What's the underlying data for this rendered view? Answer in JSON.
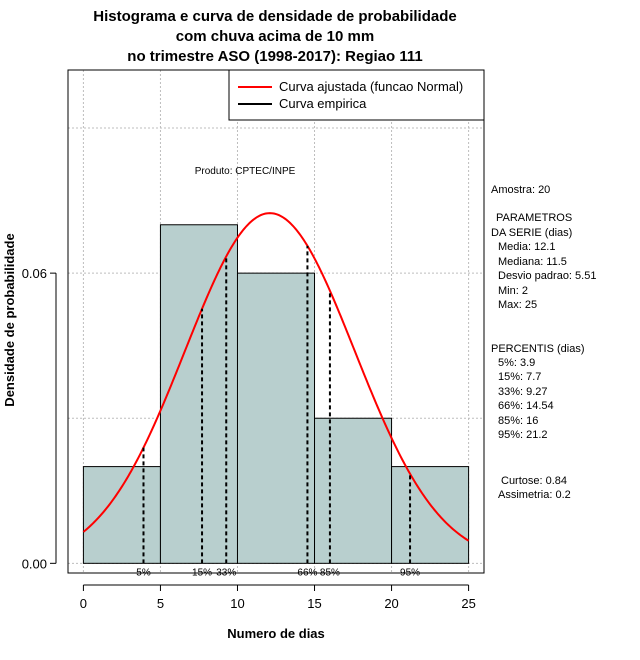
{
  "chart_data": {
    "type": "bar",
    "title": [
      "Histograma e curva de densidade de probabilidade",
      "com chuva acima de 10 mm",
      "no trimestre ASO (1998-2017): Regiao 111"
    ],
    "xlabel": "Numero de dias",
    "ylabel": "Densidade de probabilidade",
    "xlim": [
      -1,
      26
    ],
    "ylim": [
      -0.002,
      0.102
    ],
    "x_ticks": [
      0,
      5,
      10,
      15,
      20,
      25
    ],
    "y_ticks": [
      {
        "value": 0,
        "label": "0.00"
      },
      {
        "value": 0.06,
        "label": "0.06"
      }
    ],
    "bins": [
      {
        "start": 0,
        "end": 5,
        "density": 0.02
      },
      {
        "start": 5,
        "end": 10,
        "density": 0.07
      },
      {
        "start": 10,
        "end": 15,
        "density": 0.06
      },
      {
        "start": 15,
        "end": 20,
        "density": 0.03
      },
      {
        "start": 20,
        "end": 25,
        "density": 0.02
      }
    ],
    "fitted_curve": {
      "label": "Curva ajustada (funcao Normal)",
      "mean": 12.1,
      "sd": 5.51,
      "color": "#ff0000"
    },
    "empirical_curve": {
      "label": "Curva empirica",
      "color": "#000000"
    },
    "percentile_lines": [
      {
        "label": "5%",
        "x": 3.9
      },
      {
        "label": "15%",
        "x": 7.7
      },
      {
        "label": "33%",
        "x": 9.27
      },
      {
        "label": "66%",
        "x": 14.54
      },
      {
        "label": "85%",
        "x": 16
      },
      {
        "label": "95%",
        "x": 21.2
      }
    ],
    "bar_color": "#b8cfce",
    "credit": "Produto: CPTEC/INPE",
    "legend_position": "top-right"
  },
  "stats": {
    "amostra": "Amostra: 20",
    "parametros": [
      "PARAMETROS",
      "DA SERIE (dias)"
    ],
    "params": [
      "Media: 12.1",
      "Mediana: 11.5",
      "Desvio padrao: 5.51",
      "Min: 2",
      "Max: 25"
    ],
    "percentis_title": "PERCENTIS (dias)",
    "percentis": [
      "5%: 3.9",
      "15%: 7.7",
      "33%: 9.27",
      "66%: 14.54",
      "85%: 16",
      "95%: 21.2"
    ],
    "curtose": "Curtose: 0.84",
    "assimetria": "Assimetria: 0.2"
  }
}
